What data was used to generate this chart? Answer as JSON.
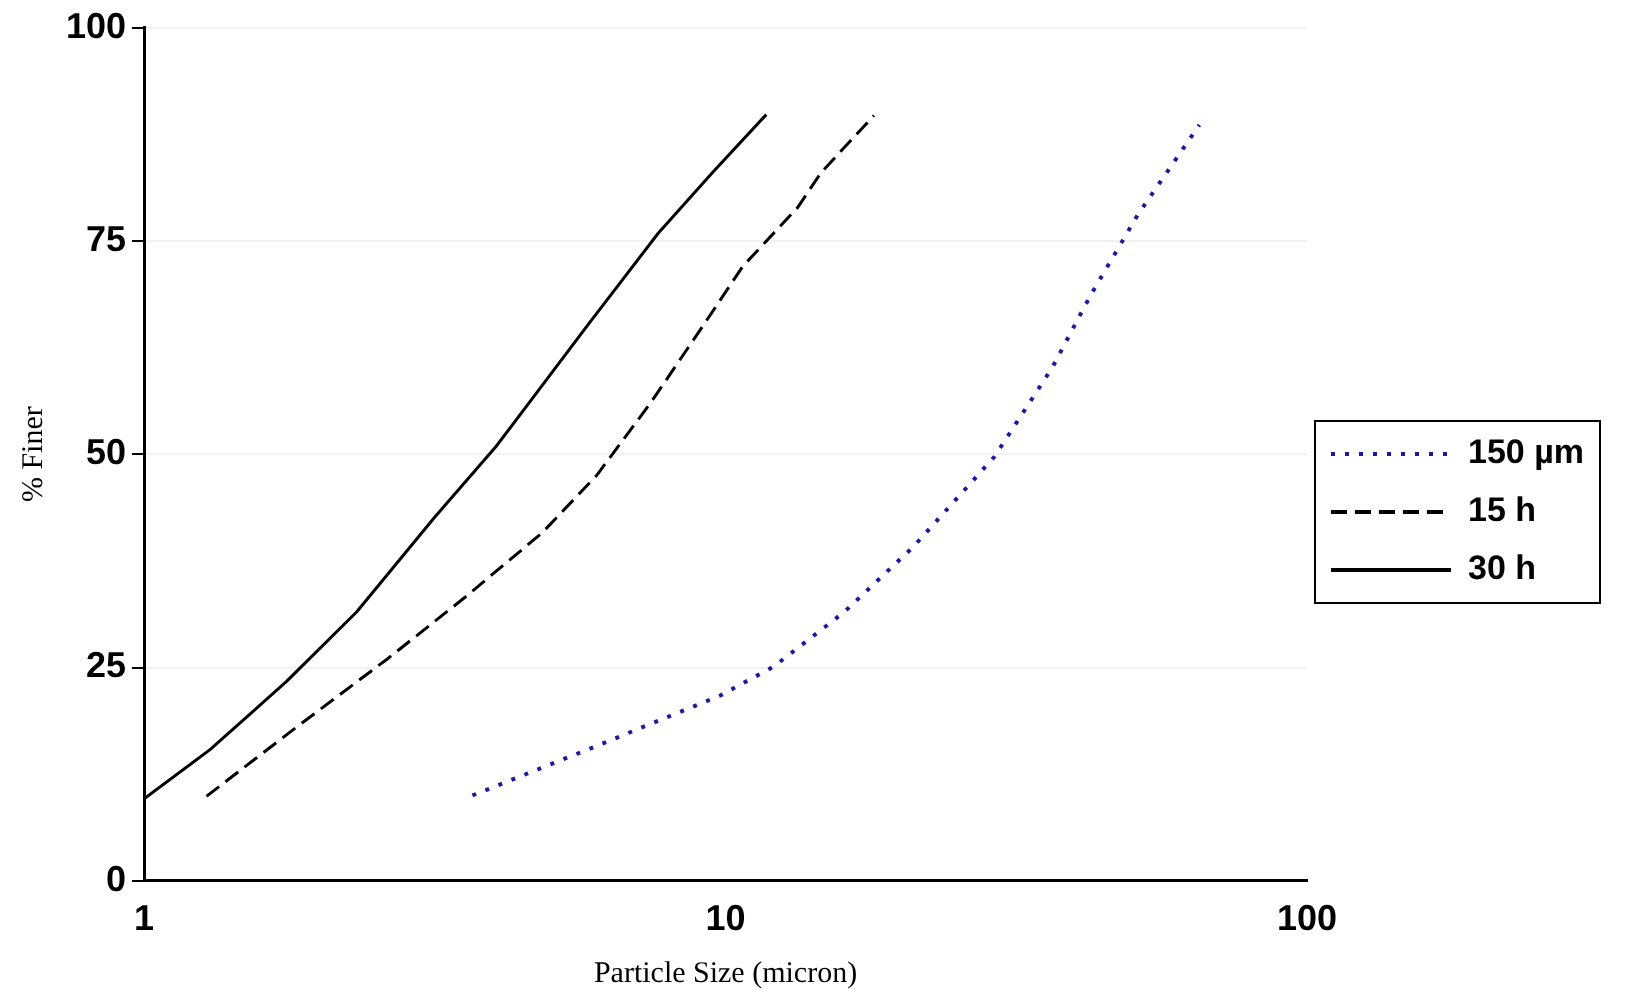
{
  "chart_data": {
    "type": "line",
    "xlabel": "Particle Size (micron)",
    "ylabel": "% Finer",
    "log": "x",
    "xlim": [
      1,
      100
    ],
    "xticks": [
      1,
      10,
      100
    ],
    "ylim": [
      0,
      100
    ],
    "yticks": [
      0,
      25,
      50,
      75,
      100
    ],
    "grid": "y",
    "legend": "right",
    "marker": "none",
    "series": [
      {
        "name": "150 µm",
        "color": "#1a1aa0",
        "line_style": "dotted",
        "x": [
          3.67,
          6.0,
          9.78,
          12.1,
          16,
          21,
          29,
          36.5,
          42.5,
          51.1,
          65.3
        ],
        "values": [
          10,
          15.8,
          21.7,
          25.1,
          31.5,
          39.1,
          49.7,
          60.2,
          68.7,
          78,
          88.6
        ]
      },
      {
        "name": "15 h",
        "color": "#000000",
        "line_style": "dashed",
        "x": [
          1.28,
          1.82,
          2.62,
          3.56,
          4.84,
          6.0,
          7.43,
          9.2,
          10.7,
          13.3,
          14.6,
          18.0
        ],
        "values": [
          9.9,
          17.9,
          26,
          33.2,
          40.8,
          47.5,
          56,
          65.3,
          72,
          78.9,
          83,
          89.7
        ]
      },
      {
        "name": "30 h",
        "color": "#000000",
        "line_style": "solid",
        "x": [
          1,
          1.3,
          1.76,
          2.32,
          3.15,
          4.03,
          5.82,
          7.66,
          9.49,
          11.75
        ],
        "values": [
          9.6,
          15.4,
          23.4,
          31.5,
          42.5,
          50.9,
          65.3,
          75.9,
          83,
          89.8
        ]
      }
    ]
  }
}
